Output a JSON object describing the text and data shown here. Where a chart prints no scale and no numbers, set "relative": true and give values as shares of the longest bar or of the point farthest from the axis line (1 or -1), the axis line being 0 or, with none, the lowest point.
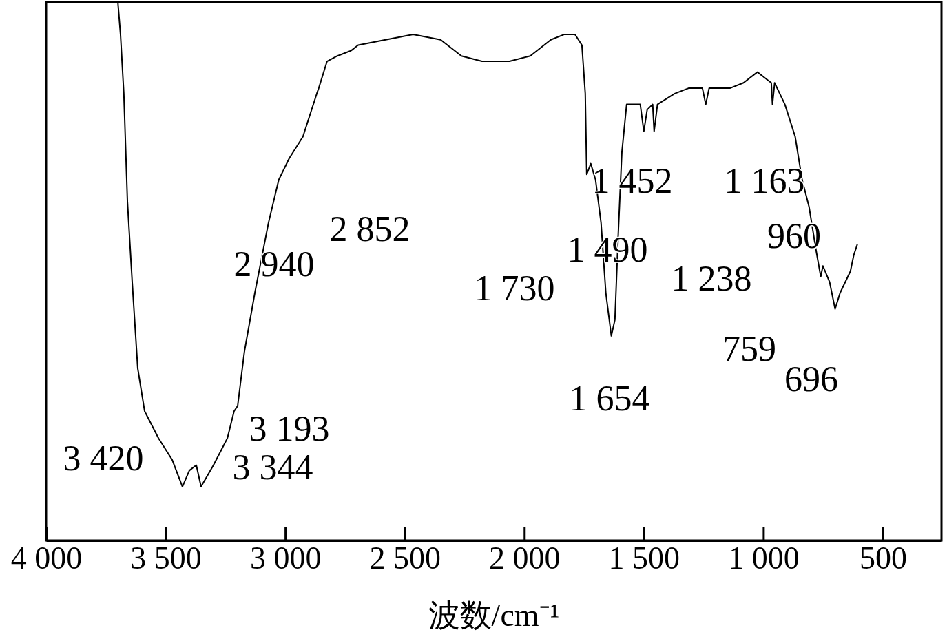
{
  "chart_data": {
    "type": "line",
    "relative": true,
    "xlabel": "波数/cm⁻¹",
    "xlim": [
      4000,
      255
    ],
    "xticks": [
      {
        "value": 4000,
        "label": "4 000"
      },
      {
        "value": 3500,
        "label": "3 500"
      },
      {
        "value": 3000,
        "label": "3 000"
      },
      {
        "value": 2500,
        "label": "2 500"
      },
      {
        "value": 2000,
        "label": "2 000"
      },
      {
        "value": 1500,
        "label": "1 500"
      },
      {
        "value": 1000,
        "label": "1 000"
      },
      500
    ],
    "series": [
      {
        "color": "#000000",
        "x": [
          3700,
          3689,
          3675,
          3660,
          3640,
          3617,
          3588,
          3530,
          3473,
          3430,
          3401,
          3372,
          3352,
          3300,
          3242,
          3214,
          3199,
          3171,
          3127,
          3070,
          3027,
          2983,
          2926,
          2868,
          2860,
          2825,
          2782,
          2724,
          2695,
          2580,
          2465,
          2350,
          2263,
          2177,
          2119,
          2062,
          1975,
          1889,
          1832,
          1788,
          1759,
          1745,
          1739,
          1722,
          1702,
          1679,
          1659,
          1636,
          1621,
          1607,
          1592,
          1572,
          1515,
          1500,
          1486,
          1463,
          1457,
          1443,
          1371,
          1313,
          1255,
          1241,
          1227,
          1140,
          1083,
          1025,
          996,
          967,
          962,
          953,
          910,
          867,
          838,
          809,
          780,
          760,
          751,
          723,
          700,
          679,
          636,
          622,
          607
        ],
        "values": [
          1.0,
          0.94,
          0.83,
          0.63,
          0.48,
          0.32,
          0.24,
          0.19,
          0.15,
          0.1,
          0.13,
          0.14,
          0.1,
          0.14,
          0.19,
          0.24,
          0.25,
          0.35,
          0.46,
          0.59,
          0.67,
          0.71,
          0.75,
          0.83,
          0.84,
          0.89,
          0.9,
          0.91,
          0.92,
          0.93,
          0.94,
          0.93,
          0.9,
          0.89,
          0.89,
          0.89,
          0.9,
          0.93,
          0.94,
          0.94,
          0.92,
          0.83,
          0.68,
          0.7,
          0.67,
          0.59,
          0.46,
          0.38,
          0.41,
          0.57,
          0.72,
          0.81,
          0.81,
          0.76,
          0.8,
          0.81,
          0.76,
          0.81,
          0.83,
          0.84,
          0.84,
          0.81,
          0.84,
          0.84,
          0.85,
          0.87,
          0.86,
          0.85,
          0.81,
          0.85,
          0.81,
          0.75,
          0.67,
          0.62,
          0.54,
          0.49,
          0.51,
          0.48,
          0.43,
          0.46,
          0.5,
          0.53,
          0.55
        ]
      }
    ],
    "annotations": [
      "3 420",
      "3 344",
      "3 193",
      "2 940",
      "2 852",
      "1 730",
      "1 490",
      "1 452",
      "1 654",
      "1 238",
      "1 163",
      "960",
      "759",
      "696"
    ]
  }
}
